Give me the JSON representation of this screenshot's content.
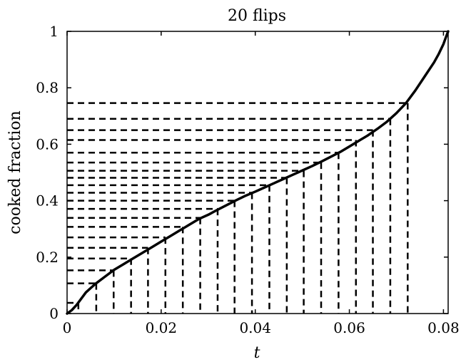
{
  "chart_data": {
    "type": "line",
    "title": "20 flips",
    "xlabel": "t",
    "ylabel": "cooked fraction",
    "xlim": [
      0,
      0.081
    ],
    "ylim": [
      0,
      1
    ],
    "x_ticks": [
      0,
      0.02,
      0.04,
      0.06,
      0.08
    ],
    "x_tick_labels": [
      "0",
      "0.02",
      "0.04",
      "0.06",
      "0.08"
    ],
    "y_ticks": [
      0,
      0.2,
      0.4,
      0.6,
      0.8,
      1
    ],
    "y_tick_labels": [
      "0",
      "0.2",
      "0.4",
      "0.6",
      "0.8",
      "1"
    ],
    "grid": false,
    "legend": "none",
    "series": [
      {
        "style": "solid",
        "color": "#000000",
        "x": [
          0,
          0.001,
          0.002,
          0.004,
          0.006,
          0.008,
          0.01,
          0.012,
          0.014,
          0.016,
          0.018,
          0.02,
          0.022,
          0.024,
          0.026,
          0.028,
          0.03,
          0.032,
          0.034,
          0.036,
          0.038,
          0.04,
          0.042,
          0.044,
          0.046,
          0.048,
          0.05,
          0.052,
          0.054,
          0.056,
          0.058,
          0.06,
          0.062,
          0.064,
          0.066,
          0.068,
          0.07,
          0.072,
          0.074,
          0.076,
          0.078,
          0.079,
          0.08,
          0.0805,
          0.081
        ],
        "y": [
          0,
          0.012,
          0.03,
          0.075,
          0.105,
          0.13,
          0.155,
          0.175,
          0.195,
          0.215,
          0.235,
          0.255,
          0.275,
          0.295,
          0.315,
          0.335,
          0.35,
          0.368,
          0.385,
          0.402,
          0.418,
          0.432,
          0.447,
          0.462,
          0.477,
          0.492,
          0.507,
          0.522,
          0.538,
          0.555,
          0.572,
          0.592,
          0.612,
          0.632,
          0.655,
          0.68,
          0.71,
          0.745,
          0.79,
          0.84,
          0.89,
          0.92,
          0.955,
          0.978,
          1.0
        ]
      }
    ],
    "flips": [
      {
        "t": 0.0024,
        "f": 0.038
      },
      {
        "t": 0.0062,
        "f": 0.107
      },
      {
        "t": 0.0099,
        "f": 0.153
      },
      {
        "t": 0.0136,
        "f": 0.195
      },
      {
        "t": 0.0172,
        "f": 0.233
      },
      {
        "t": 0.0209,
        "f": 0.27
      },
      {
        "t": 0.0246,
        "f": 0.307
      },
      {
        "t": 0.0283,
        "f": 0.339
      },
      {
        "t": 0.032,
        "f": 0.371
      },
      {
        "t": 0.0356,
        "f": 0.4
      },
      {
        "t": 0.0393,
        "f": 0.428
      },
      {
        "t": 0.043,
        "f": 0.455
      },
      {
        "t": 0.0467,
        "f": 0.481
      },
      {
        "t": 0.0503,
        "f": 0.506
      },
      {
        "t": 0.054,
        "f": 0.535
      },
      {
        "t": 0.0577,
        "f": 0.57
      },
      {
        "t": 0.0614,
        "f": 0.615
      },
      {
        "t": 0.065,
        "f": 0.65
      },
      {
        "t": 0.0687,
        "f": 0.69
      },
      {
        "t": 0.0724,
        "f": 0.746
      }
    ]
  }
}
